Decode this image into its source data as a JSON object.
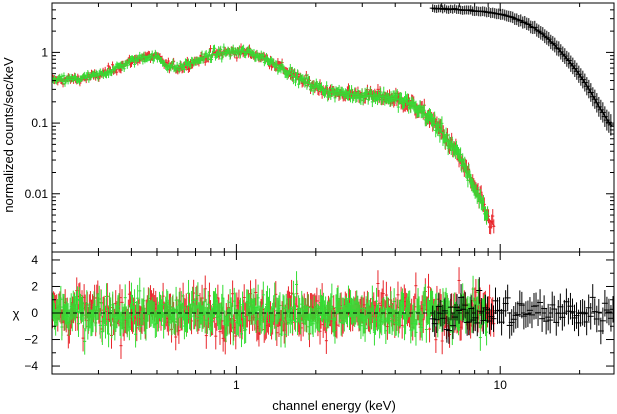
{
  "colors": {
    "red": "#e8262b",
    "green": "#33dd33",
    "black": "#000000"
  },
  "chart_data": [
    {
      "type": "scatter",
      "panel": "spectrum",
      "xlabel": "",
      "ylabel": "normalized counts/sec/keV",
      "xscale": "log",
      "yscale": "log",
      "xlim": [
        0.2,
        27
      ],
      "ylim": [
        0.0015,
        5
      ],
      "x_ticks": [
        1,
        10
      ],
      "x_tick_labels": [
        "1",
        "10"
      ],
      "y_ticks": [
        0.01,
        0.1,
        1
      ],
      "y_tick_labels": [
        "0.01",
        "0.1",
        "1"
      ],
      "series": [
        {
          "color": "#e8262b",
          "x": [
            0.2,
            0.25,
            0.3,
            0.35,
            0.4,
            0.45,
            0.5,
            0.55,
            0.6,
            0.7,
            0.8,
            0.9,
            1.0,
            1.1,
            1.2,
            1.3,
            1.5,
            1.7,
            2.0,
            2.3,
            2.6,
            3.0,
            3.5,
            4.0,
            4.5,
            5.0,
            5.5,
            6.0,
            6.5,
            7.0,
            7.5,
            8.0,
            8.5,
            9.0,
            9.5
          ],
          "y": [
            0.4,
            0.42,
            0.47,
            0.6,
            0.75,
            0.88,
            0.85,
            0.65,
            0.6,
            0.75,
            0.92,
            1.0,
            1.02,
            1.0,
            0.92,
            0.8,
            0.6,
            0.43,
            0.33,
            0.27,
            0.26,
            0.25,
            0.24,
            0.22,
            0.19,
            0.15,
            0.11,
            0.075,
            0.05,
            0.032,
            0.02,
            0.012,
            0.0075,
            0.0045,
            0.0035
          ]
        },
        {
          "color": "#33dd33",
          "x": [
            0.2,
            0.25,
            0.3,
            0.35,
            0.4,
            0.45,
            0.5,
            0.55,
            0.6,
            0.7,
            0.8,
            0.9,
            1.0,
            1.1,
            1.2,
            1.3,
            1.5,
            1.7,
            2.0,
            2.3,
            2.6,
            3.0,
            3.5,
            4.0,
            4.5,
            5.0,
            5.5,
            6.0,
            6.5,
            7.0,
            7.5,
            8.0,
            8.5,
            9.0
          ],
          "y": [
            0.4,
            0.42,
            0.47,
            0.6,
            0.75,
            0.88,
            0.85,
            0.65,
            0.6,
            0.75,
            0.92,
            1.0,
            1.02,
            1.0,
            0.92,
            0.8,
            0.6,
            0.43,
            0.33,
            0.27,
            0.26,
            0.25,
            0.24,
            0.22,
            0.19,
            0.15,
            0.11,
            0.075,
            0.05,
            0.032,
            0.02,
            0.012,
            0.0075,
            0.0045
          ]
        },
        {
          "color": "#000000",
          "x": [
            5.5,
            6.5,
            7.5,
            8.5,
            9.5,
            10.5,
            11.5,
            12.5,
            13.5,
            14.5,
            15.5,
            16.5,
            17.5,
            18.5,
            19.5,
            20.5,
            21.5,
            22.5,
            23.5,
            24.5,
            25.5,
            26.5
          ],
          "y": [
            4.2,
            4.1,
            3.95,
            3.8,
            3.6,
            3.3,
            3.0,
            2.6,
            2.2,
            1.8,
            1.45,
            1.15,
            0.9,
            0.7,
            0.55,
            0.42,
            0.32,
            0.24,
            0.18,
            0.14,
            0.11,
            0.09
          ]
        }
      ]
    },
    {
      "type": "scatter",
      "panel": "residuals",
      "xlabel": "channel energy (keV)",
      "ylabel": "χ",
      "xscale": "log",
      "xlim": [
        0.2,
        27
      ],
      "ylim": [
        -4.6,
        4.6
      ],
      "x_ticks": [
        1,
        10
      ],
      "x_tick_labels": [
        "1",
        "10"
      ],
      "y_ticks": [
        -4,
        -2,
        0,
        2,
        4
      ],
      "y_tick_labels": [
        "−4",
        "−2",
        "0",
        "2",
        "4"
      ],
      "reference_line": 0,
      "series": [
        {
          "color": "#e8262b",
          "x_range": [
            0.2,
            9.5
          ],
          "spread": 1.1
        },
        {
          "color": "#33dd33",
          "x_range": [
            0.2,
            9.0
          ],
          "spread": 1.0
        },
        {
          "color": "#000000",
          "x_range": [
            5.5,
            27
          ],
          "spread": 0.9
        }
      ]
    }
  ]
}
